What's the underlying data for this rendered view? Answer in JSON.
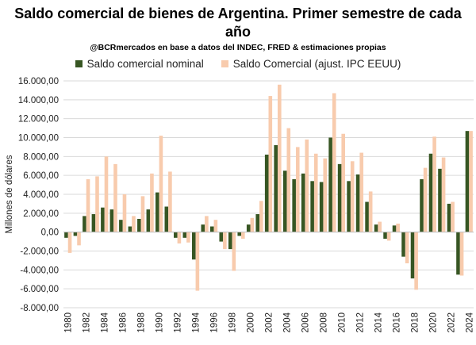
{
  "chart_data": {
    "type": "bar",
    "title": "Saldo comercial de bienes de Argentina. Primer semestre de cada año",
    "subtitle": "@BCRmercados en base a datos del INDEC, FRED & estimaciones propias",
    "ylabel": "Millones de dólares",
    "xlabel": "",
    "ylim": [
      -8000,
      16000
    ],
    "ytick_step": 2000,
    "grid": true,
    "legend_position": "top",
    "x": [
      1980,
      1981,
      1982,
      1983,
      1984,
      1985,
      1986,
      1987,
      1988,
      1989,
      1990,
      1991,
      1992,
      1993,
      1994,
      1995,
      1996,
      1997,
      1998,
      1999,
      2000,
      2001,
      2002,
      2003,
      2004,
      2005,
      2006,
      2007,
      2008,
      2009,
      2010,
      2011,
      2012,
      2013,
      2014,
      2015,
      2016,
      2017,
      2018,
      2019,
      2020,
      2021,
      2022,
      2023,
      2024
    ],
    "series": [
      {
        "name": "Saldo comercial nominal",
        "color": "#375623",
        "values": [
          -600,
          -400,
          1700,
          1900,
          2600,
          2400,
          1300,
          600,
          1400,
          2400,
          4200,
          2700,
          -600,
          -600,
          -2900,
          800,
          600,
          -1000,
          -1800,
          -400,
          800,
          1900,
          8200,
          9200,
          6500,
          5600,
          6200,
          5400,
          5300,
          10000,
          7200,
          5400,
          6100,
          3200,
          800,
          -700,
          700,
          -2600,
          -4900,
          5600,
          8300,
          6700,
          3000,
          -4500,
          10700
        ]
      },
      {
        "name": "Saldo Comercial (ajust. IPC EEUU)",
        "color": "#f8cbad",
        "values": [
          -2200,
          -1400,
          5600,
          5900,
          8000,
          7200,
          4000,
          1700,
          3800,
          6200,
          10200,
          6400,
          -1200,
          -1100,
          -6200,
          1700,
          1300,
          -1800,
          -4100,
          -700,
          1500,
          3300,
          14400,
          15600,
          11000,
          9000,
          9800,
          8300,
          7800,
          14700,
          10400,
          7500,
          8400,
          4300,
          1100,
          -900,
          900,
          -3300,
          -6100,
          6800,
          10100,
          7900,
          3200,
          -4600,
          10700
        ]
      }
    ]
  }
}
